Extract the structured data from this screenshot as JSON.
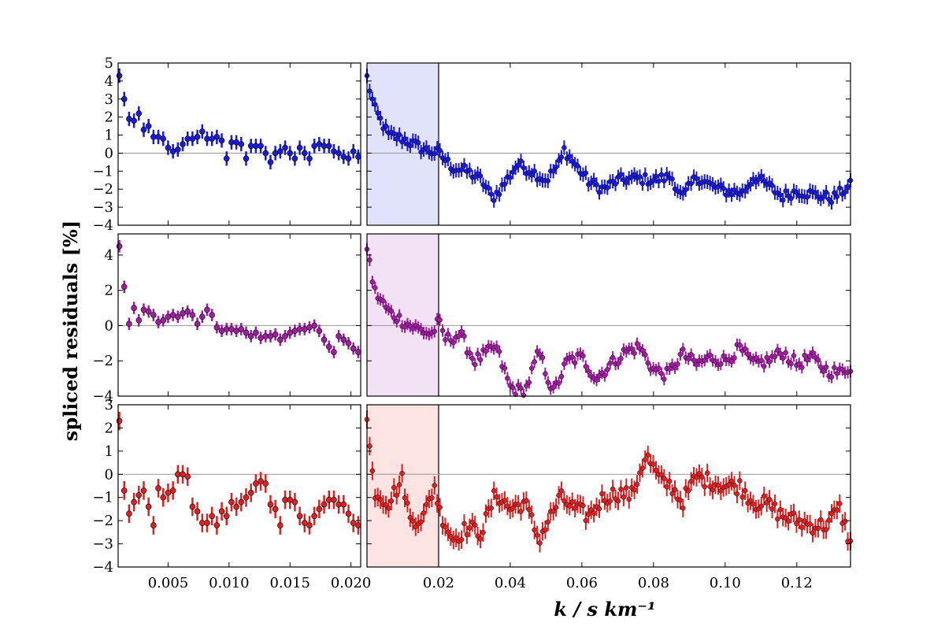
{
  "chart_data": {
    "type": "scatter",
    "ylabel": "spliced residuals  [%]",
    "xlabel": "k / s km⁻¹",
    "shared_ylabel": true,
    "grid": false,
    "legend": "none",
    "zero_line": true,
    "highlight": {
      "x_range": [
        0.0,
        0.02
      ]
    },
    "x_ticks_left": [
      "0.005",
      "0.010",
      "0.015",
      "0.020"
    ],
    "x_ticks_right": [
      "0.02",
      "0.04",
      "0.06",
      "0.08",
      "0.10",
      "0.12"
    ],
    "rows": [
      {
        "color": "#1a1ad9",
        "shade": "#e1e2fb",
        "ylim": [
          -4,
          5
        ],
        "yticks": [
          "5",
          "4",
          "3",
          "2",
          "1",
          "0",
          "−1",
          "−2",
          "−3",
          "−4"
        ],
        "ytick_values": [
          5,
          4,
          3,
          2,
          1,
          0,
          -1,
          -2,
          -3,
          -4
        ],
        "left_xlim": [
          0.0009,
          0.0208
        ],
        "right_xlim": [
          0.0,
          0.135
        ],
        "left_points": {
          "x": [
            0.001,
            0.0014,
            0.0018,
            0.0022,
            0.0026,
            0.003,
            0.0034,
            0.0038,
            0.0042,
            0.0046,
            0.005,
            0.0054,
            0.0058,
            0.0062,
            0.0066,
            0.007,
            0.0074,
            0.0078,
            0.0082,
            0.0086,
            0.009,
            0.0094,
            0.0098,
            0.0102,
            0.0106,
            0.011,
            0.0114,
            0.0118,
            0.0122,
            0.0126,
            0.013,
            0.0134,
            0.0138,
            0.0142,
            0.0146,
            0.015,
            0.0154,
            0.0158,
            0.0162,
            0.0166,
            0.017,
            0.0174,
            0.0178,
            0.0182,
            0.0186,
            0.019,
            0.0194,
            0.0198,
            0.0202,
            0.0206
          ],
          "y": [
            4.3,
            3.0,
            1.9,
            1.8,
            2.2,
            1.3,
            1.5,
            0.9,
            0.9,
            0.8,
            0.3,
            0.1,
            0.2,
            0.5,
            0.8,
            0.8,
            0.9,
            1.2,
            0.8,
            0.8,
            0.9,
            0.7,
            -0.3,
            0.6,
            0.6,
            0.5,
            -0.3,
            0.4,
            0.4,
            0.4,
            0.0,
            -0.5,
            0.0,
            0.1,
            0.3,
            0.0,
            -0.3,
            0.3,
            0.0,
            -0.3,
            0.4,
            0.5,
            0.4,
            0.4,
            0.1,
            0.0,
            -0.2,
            -0.3,
            0.1,
            -0.2
          ]
        },
        "right_profile": {
          "x": [
            0.0,
            0.002,
            0.006,
            0.01,
            0.016,
            0.02,
            0.024,
            0.028,
            0.032,
            0.035,
            0.038,
            0.042,
            0.046,
            0.05,
            0.054,
            0.055,
            0.058,
            0.062,
            0.066,
            0.07,
            0.075,
            0.08,
            0.085,
            0.088,
            0.092,
            0.096,
            0.1,
            0.105,
            0.108,
            0.112,
            0.116,
            0.12,
            0.125,
            0.13,
            0.135
          ],
          "y": [
            4.2,
            2.5,
            1.0,
            0.8,
            0.2,
            0.0,
            -0.8,
            -1.0,
            -1.5,
            -2.5,
            -1.8,
            -0.6,
            -1.0,
            -1.5,
            -0.5,
            0.2,
            -0.6,
            -1.6,
            -2.0,
            -1.5,
            -1.4,
            -1.5,
            -1.3,
            -2.5,
            -1.3,
            -1.8,
            -2.1,
            -2.2,
            -1.3,
            -1.8,
            -2.4,
            -2.1,
            -2.3,
            -2.5,
            -1.8
          ]
        },
        "right_points_n": 180,
        "noise": 0.3,
        "err": 0.4
      },
      {
        "color": "#a21ca2",
        "shade": "#f3e2f6",
        "ylim": [
          -4,
          5.2
        ],
        "yticks": [
          "4",
          "2",
          "0",
          "−2",
          "−4"
        ],
        "ytick_values": [
          4,
          2,
          0,
          -2,
          -4
        ],
        "left_xlim": [
          0.0009,
          0.0208
        ],
        "right_xlim": [
          0.0,
          0.135
        ],
        "left_points": {
          "x": [
            0.001,
            0.0014,
            0.0018,
            0.0022,
            0.0026,
            0.003,
            0.0034,
            0.0038,
            0.0042,
            0.0046,
            0.005,
            0.0054,
            0.0058,
            0.0062,
            0.0066,
            0.007,
            0.0074,
            0.0078,
            0.0082,
            0.0086,
            0.009,
            0.0094,
            0.0098,
            0.0102,
            0.0106,
            0.011,
            0.0114,
            0.0118,
            0.0122,
            0.0126,
            0.013,
            0.0134,
            0.0138,
            0.0142,
            0.0146,
            0.015,
            0.0154,
            0.0158,
            0.0162,
            0.0166,
            0.017,
            0.0174,
            0.0178,
            0.0182,
            0.0186,
            0.019,
            0.0194,
            0.0198,
            0.0202,
            0.0206
          ],
          "y": [
            4.5,
            2.2,
            0.1,
            1.0,
            0.3,
            0.9,
            0.8,
            0.6,
            0.2,
            0.3,
            0.5,
            0.6,
            0.5,
            0.7,
            0.8,
            0.6,
            0.1,
            0.5,
            0.9,
            0.6,
            -0.1,
            -0.3,
            -0.2,
            -0.2,
            -0.3,
            -0.2,
            -0.4,
            -0.6,
            -0.4,
            -0.7,
            -0.6,
            -0.6,
            -0.5,
            -0.8,
            -0.6,
            -0.4,
            -0.3,
            -0.2,
            -0.2,
            -0.1,
            0.0,
            -0.3,
            -0.8,
            -1.2,
            -1.5,
            -0.6,
            -0.8,
            -1.0,
            -1.3,
            -1.5
          ]
        },
        "right_profile": {
          "x": [
            0.0,
            0.002,
            0.006,
            0.012,
            0.018,
            0.02,
            0.022,
            0.026,
            0.03,
            0.034,
            0.036,
            0.04,
            0.044,
            0.048,
            0.052,
            0.056,
            0.06,
            0.064,
            0.068,
            0.072,
            0.076,
            0.08,
            0.084,
            0.088,
            0.092,
            0.096,
            0.1,
            0.104,
            0.108,
            0.112,
            0.116,
            0.12,
            0.124,
            0.128,
            0.132,
            0.135
          ],
          "y": [
            4.5,
            2.0,
            0.8,
            0.0,
            -0.5,
            0.2,
            -0.8,
            -0.5,
            -2.0,
            -1.5,
            -1.2,
            -3.5,
            -3.8,
            -1.5,
            -3.8,
            -2.0,
            -1.8,
            -3.0,
            -2.2,
            -1.5,
            -1.2,
            -2.5,
            -2.8,
            -1.6,
            -2.2,
            -1.8,
            -2.0,
            -1.3,
            -2.2,
            -2.0,
            -1.5,
            -2.2,
            -1.8,
            -2.5,
            -2.7,
            -2.3
          ]
        },
        "right_points_n": 180,
        "noise": 0.35,
        "err": 0.35
      },
      {
        "color": "#e02020",
        "shade": "#fde3e1",
        "ylim": [
          -4,
          3
        ],
        "yticks": [
          "3",
          "2",
          "1",
          "0",
          "−1",
          "−2",
          "−3",
          "−4"
        ],
        "ytick_values": [
          3,
          2,
          1,
          0,
          -1,
          -2,
          -3,
          -4
        ],
        "left_xlim": [
          0.0009,
          0.0208
        ],
        "right_xlim": [
          0.0,
          0.135
        ],
        "left_points": {
          "x": [
            0.001,
            0.0014,
            0.0018,
            0.0022,
            0.0026,
            0.003,
            0.0034,
            0.0038,
            0.0042,
            0.0046,
            0.005,
            0.0054,
            0.0058,
            0.0062,
            0.0066,
            0.007,
            0.0074,
            0.0078,
            0.0082,
            0.0086,
            0.009,
            0.0094,
            0.0098,
            0.0102,
            0.0106,
            0.011,
            0.0114,
            0.0118,
            0.0122,
            0.0126,
            0.013,
            0.0134,
            0.0138,
            0.0142,
            0.0146,
            0.015,
            0.0154,
            0.0158,
            0.0162,
            0.0166,
            0.017,
            0.0174,
            0.0178,
            0.0182,
            0.0186,
            0.019,
            0.0194,
            0.0198,
            0.0202,
            0.0206
          ],
          "y": [
            2.3,
            -0.7,
            -1.7,
            -1.2,
            -0.9,
            -0.7,
            -1.4,
            -2.2,
            -0.6,
            -1.0,
            -0.8,
            -0.7,
            0.0,
            0.0,
            -0.1,
            -1.4,
            -1.6,
            -2.1,
            -2.1,
            -1.8,
            -2.2,
            -1.6,
            -1.8,
            -1.2,
            -1.4,
            -1.2,
            -1.0,
            -0.8,
            -0.4,
            -0.3,
            -0.4,
            -1.3,
            -1.5,
            -2.2,
            -1.1,
            -1.1,
            -1.2,
            -1.8,
            -2.1,
            -2.2,
            -1.8,
            -1.5,
            -1.3,
            -1.1,
            -1.1,
            -1.3,
            -1.3,
            -1.7,
            -2.1,
            -2.2
          ]
        },
        "right_profile": {
          "x": [
            0.0,
            0.002,
            0.006,
            0.01,
            0.012,
            0.016,
            0.019,
            0.02,
            0.024,
            0.028,
            0.032,
            0.036,
            0.04,
            0.044,
            0.048,
            0.05,
            0.054,
            0.058,
            0.062,
            0.066,
            0.07,
            0.074,
            0.077,
            0.078,
            0.082,
            0.085,
            0.088,
            0.092,
            0.096,
            0.1,
            0.104,
            0.108,
            0.112,
            0.116,
            0.12,
            0.124,
            0.128,
            0.132,
            0.135
          ],
          "y": [
            2.3,
            -0.7,
            -1.2,
            -0.2,
            -2.0,
            -1.8,
            -0.4,
            -1.5,
            -2.8,
            -2.3,
            -2.5,
            -0.8,
            -1.5,
            -1.2,
            -2.8,
            -2.2,
            -1.0,
            -1.5,
            -1.8,
            -1.0,
            -0.8,
            -0.9,
            0.5,
            0.8,
            -0.3,
            -0.5,
            -1.2,
            -0.1,
            -0.3,
            -0.5,
            -0.5,
            -1.2,
            -1.3,
            -1.8,
            -2.0,
            -2.2,
            -2.2,
            -1.5,
            -3.0
          ]
        },
        "right_points_n": 180,
        "noise": 0.35,
        "err": 0.4
      }
    ]
  }
}
